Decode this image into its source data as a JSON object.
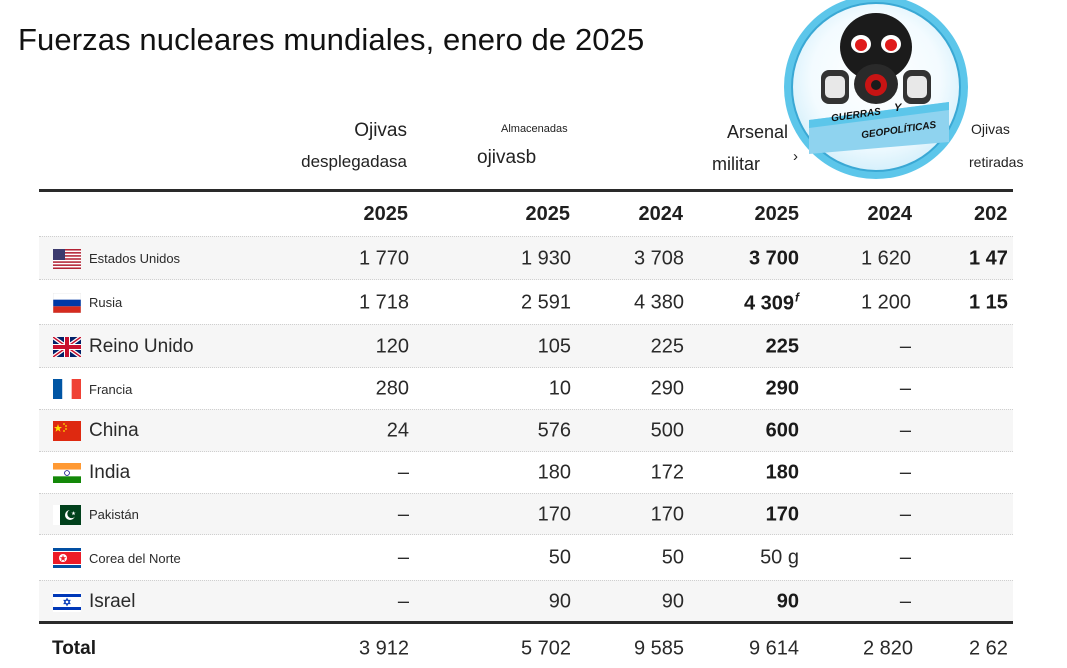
{
  "title": "Fuerzas nucleares mundiales, enero de 2025",
  "headers": {
    "deployed_line1": "Ojivas",
    "deployed_line2": "desplegadasa",
    "stored_line1": "Almacenadas",
    "stored_line2": "ojivasb",
    "arsenal_line1": "Arsenal",
    "arsenal_line2": "militar",
    "arsenal_extra": "›",
    "retired_line1": "Ojivas",
    "retired_line2": "retiradas"
  },
  "years": [
    "2025",
    "2025",
    "2024",
    "2025",
    "2024",
    "202"
  ],
  "rows": [
    {
      "country": "Estados Unidos",
      "deployed": "1 770",
      "stored_2025": "1 930",
      "stored_2024": "3 708",
      "arsenal": "3 700",
      "retired_2024": "1 620",
      "retired_2025": "1 47"
    },
    {
      "country": "Rusia",
      "deployed": "1 718",
      "stored_2025": "2 591",
      "stored_2024": "4 380",
      "arsenal": "4 309",
      "arsenal_note": "f",
      "retired_2024": "1 200",
      "retired_2025": "1 15"
    },
    {
      "country": "Reino Unido",
      "deployed": "120",
      "stored_2025": "105",
      "stored_2024": "225",
      "arsenal": "225",
      "retired_2024": "–",
      "retired_2025": ""
    },
    {
      "country": "Francia",
      "deployed": "280",
      "stored_2025": "10",
      "stored_2024": "290",
      "arsenal": "290",
      "retired_2024": "–",
      "retired_2025": ""
    },
    {
      "country": "China",
      "deployed": "24",
      "stored_2025": "576",
      "stored_2024": "500",
      "arsenal": "600",
      "retired_2024": "–",
      "retired_2025": ""
    },
    {
      "country": "India",
      "deployed": "–",
      "stored_2025": "180",
      "stored_2024": "172",
      "arsenal": "180",
      "retired_2024": "–",
      "retired_2025": ""
    },
    {
      "country": "Pakistán",
      "deployed": "–",
      "stored_2025": "170",
      "stored_2024": "170",
      "arsenal": "170",
      "retired_2024": "–",
      "retired_2025": ""
    },
    {
      "country": "Corea del Norte",
      "deployed": "–",
      "stored_2025": "50",
      "stored_2024": "50",
      "arsenal": "50 g",
      "retired_2024": "–",
      "retired_2025": ""
    },
    {
      "country": "Israel",
      "deployed": "–",
      "stored_2025": "90",
      "stored_2024": "90",
      "arsenal": "90",
      "retired_2024": "–",
      "retired_2025": ""
    }
  ],
  "total": {
    "label": "Total",
    "deployed": "3 912",
    "stored_2025": "5 702",
    "stored_2024": "9 585",
    "arsenal": "9 614",
    "retired_2024": "2 820",
    "retired_2025": "2 62"
  },
  "logo": {
    "text_line1": "GUERRAS",
    "text_line2": "Y",
    "text_line3": "GEOPOLÍTICAS"
  },
  "colors": {
    "rule": "#2a2a2a",
    "shade": "#f6f6f6",
    "logo_ring": "#5cc6ea"
  }
}
